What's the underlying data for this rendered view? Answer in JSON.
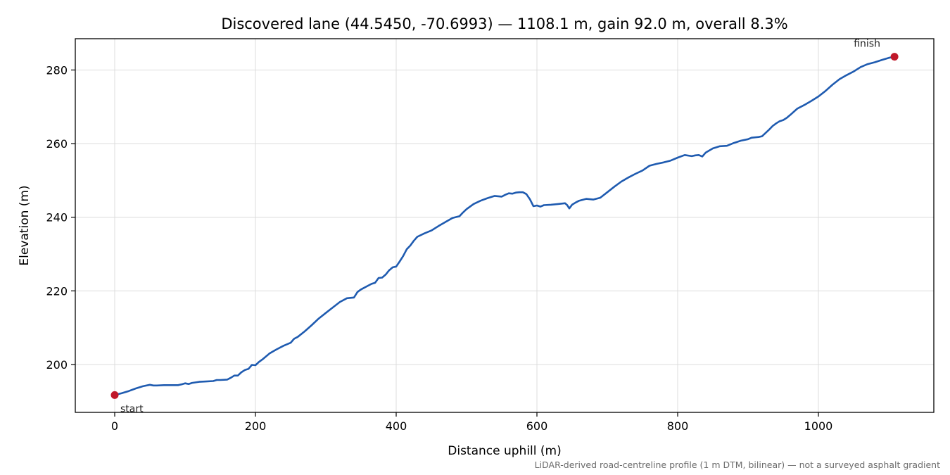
{
  "chart_data": {
    "type": "line",
    "title": "Discovered lane (44.5450, -70.6993) — 1108.1 m, gain 92.0 m, overall 8.3%",
    "xlabel": "Distance uphill (m)",
    "ylabel": "Elevation (m)",
    "xlim": [
      -56,
      1164
    ],
    "ylim": [
      187,
      288.5
    ],
    "x_ticks": [
      0,
      200,
      400,
      600,
      800,
      1000
    ],
    "y_ticks": [
      200,
      220,
      240,
      260,
      280
    ],
    "grid": true,
    "legend": "none",
    "line_color": "#1f5bb0",
    "marker_color": "#c0182a",
    "series": [
      {
        "x": [
          0,
          10,
          20,
          30,
          40,
          50,
          55,
          60,
          70,
          80,
          90,
          95,
          100,
          105,
          110,
          120,
          130,
          140,
          145,
          150,
          160,
          165,
          170,
          175,
          180,
          185,
          190,
          195,
          200,
          205,
          210,
          220,
          230,
          240,
          250,
          255,
          260,
          270,
          280,
          290,
          300,
          310,
          320,
          330,
          340,
          345,
          350,
          360,
          365,
          370,
          375,
          380,
          385,
          390,
          395,
          400,
          405,
          410,
          415,
          420,
          425,
          430,
          440,
          450,
          460,
          470,
          480,
          490,
          495,
          500,
          510,
          520,
          530,
          540,
          550,
          555,
          560,
          565,
          570,
          575,
          580,
          585,
          590,
          595,
          600,
          605,
          610,
          620,
          630,
          640,
          643,
          646,
          650,
          655,
          660,
          670,
          680,
          690,
          700,
          710,
          720,
          730,
          740,
          750,
          760,
          770,
          780,
          790,
          800,
          810,
          820,
          825,
          830,
          835,
          840,
          850,
          860,
          870,
          880,
          890,
          900,
          905,
          910,
          915,
          920,
          930,
          935,
          940,
          945,
          950,
          955,
          960,
          970,
          980,
          990,
          1000,
          1010,
          1020,
          1030,
          1040,
          1050,
          1060,
          1070,
          1080,
          1090,
          1100,
          1108.1
        ],
        "y": [
          191.7,
          192.2,
          192.8,
          193.5,
          194.1,
          194.5,
          194.3,
          194.3,
          194.4,
          194.4,
          194.4,
          194.6,
          194.9,
          194.7,
          195.0,
          195.3,
          195.4,
          195.5,
          195.8,
          195.8,
          195.9,
          196.4,
          197.0,
          197.0,
          197.9,
          198.5,
          198.8,
          199.9,
          199.8,
          200.7,
          201.4,
          203.0,
          204.1,
          205.1,
          205.9,
          207.0,
          207.5,
          209.0,
          210.7,
          212.5,
          214.0,
          215.5,
          217.0,
          218.0,
          218.2,
          219.7,
          220.4,
          221.4,
          221.9,
          222.2,
          223.5,
          223.6,
          224.4,
          225.6,
          226.4,
          226.6,
          228.0,
          229.5,
          231.3,
          232.3,
          233.6,
          234.7,
          235.6,
          236.4,
          237.6,
          238.7,
          239.8,
          240.3,
          241.3,
          242.2,
          243.6,
          244.5,
          245.2,
          245.8,
          245.6,
          246.1,
          246.5,
          246.4,
          246.7,
          246.8,
          246.8,
          246.3,
          244.9,
          243.0,
          243.2,
          242.9,
          243.3,
          243.4,
          243.6,
          243.8,
          243.3,
          242.4,
          243.4,
          244.0,
          244.5,
          245.0,
          244.8,
          245.3,
          246.8,
          248.3,
          249.7,
          250.8,
          251.8,
          252.7,
          254.0,
          254.5,
          254.9,
          255.4,
          256.2,
          256.9,
          256.6,
          256.8,
          256.9,
          256.5,
          257.6,
          258.7,
          259.3,
          259.4,
          260.2,
          260.8,
          261.2,
          261.6,
          261.7,
          261.8,
          262.0,
          263.8,
          264.8,
          265.5,
          266.1,
          266.4,
          267.0,
          267.8,
          269.5,
          270.5,
          271.6,
          272.8,
          274.3,
          276.0,
          277.5,
          278.6,
          279.6,
          280.8,
          281.6,
          282.1,
          282.7,
          283.3,
          283.6
        ]
      }
    ],
    "annotations": [
      {
        "text": "start",
        "x": 0,
        "y": 191.7
      },
      {
        "text": "finish",
        "x": 1108.1,
        "y": 283.6
      }
    ],
    "footnote": "LiDAR-derived road-centreline profile (1 m DTM, bilinear) — not a surveyed asphalt gradient"
  }
}
